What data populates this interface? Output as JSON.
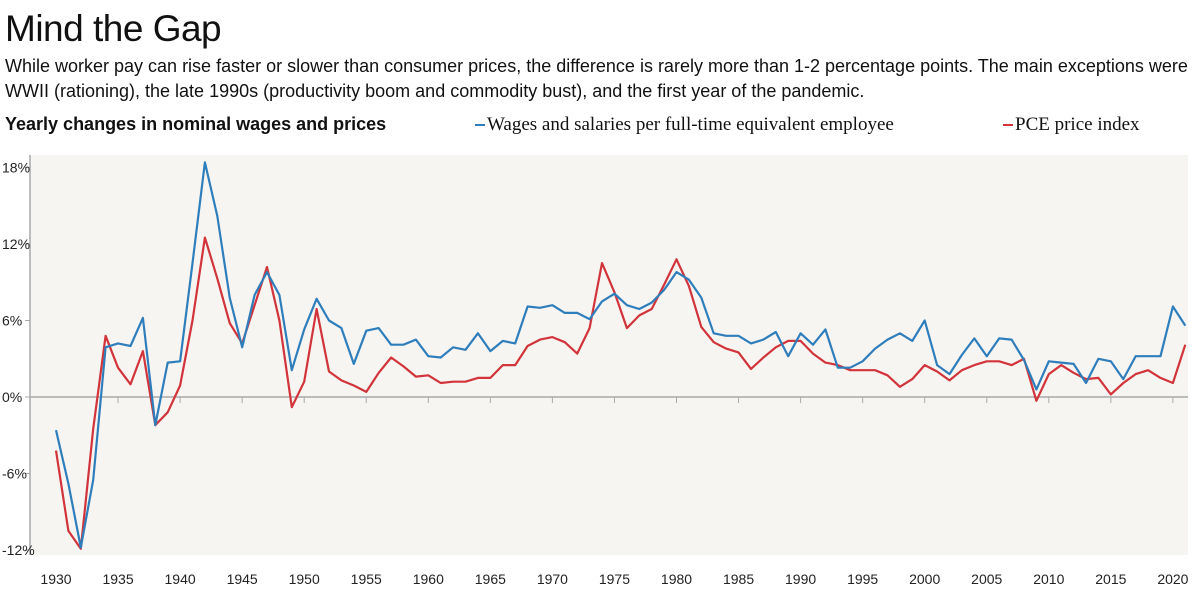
{
  "header": {
    "title": "Mind the Gap",
    "subtitle": "While worker pay can rise faster or slower than consumer prices, the difference is rarely more than 1-2 percentage points. The main exceptions were WWII (rationing), the late 1990s (productivity boom and commodity bust), and the first year of the pandemic."
  },
  "chart_data": {
    "type": "line",
    "title": "Yearly changes in nominal wages and prices",
    "xlabel": "",
    "ylabel": "",
    "xlim": [
      1930,
      2021
    ],
    "ylim": [
      -12,
      19
    ],
    "yticks": [
      -12,
      -6,
      0,
      6,
      12,
      18
    ],
    "ytick_labels": [
      "-12%",
      "-6%",
      "0%",
      "6%",
      "12%",
      "18%"
    ],
    "xticks": [
      1930,
      1935,
      1940,
      1945,
      1950,
      1955,
      1960,
      1965,
      1970,
      1975,
      1980,
      1985,
      1990,
      1995,
      2000,
      2005,
      2010,
      2015,
      2020
    ],
    "xtick_labels": [
      "1930",
      "1935",
      "1940",
      "1945",
      "1950",
      "1955",
      "1960",
      "1965",
      "1970",
      "1975",
      "1980",
      "1985",
      "1990",
      "1995",
      "2000",
      "2005",
      "2010",
      "2015",
      "2020"
    ],
    "grid": false,
    "legend_position": "top-right",
    "x_start": 1930,
    "series": [
      {
        "name": "Wages and salaries per full-time equivalent employee",
        "color": "#2f7ebc",
        "values": [
          -2.6,
          -6.8,
          -11.8,
          -6.5,
          3.9,
          4.2,
          4.0,
          6.2,
          -2.2,
          2.7,
          2.8,
          10.5,
          18.4,
          14.2,
          7.8,
          3.9,
          8.0,
          9.8,
          8.0,
          2.1,
          5.3,
          7.7,
          6.0,
          5.4,
          2.6,
          5.2,
          5.4,
          4.1,
          4.1,
          4.5,
          3.2,
          3.1,
          3.9,
          3.7,
          5.0,
          3.6,
          4.4,
          4.2,
          7.1,
          7.0,
          7.2,
          6.6,
          6.6,
          6.1,
          7.5,
          8.1,
          7.2,
          6.9,
          7.4,
          8.4,
          9.8,
          9.2,
          7.8,
          5.0,
          4.8,
          4.8,
          4.2,
          4.5,
          5.1,
          3.2,
          5.0,
          4.1,
          5.3,
          2.3,
          2.3,
          2.8,
          3.8,
          4.5,
          5.0,
          4.4,
          6.0,
          2.5,
          1.8,
          3.3,
          4.6,
          3.2,
          4.6,
          4.5,
          2.9,
          0.6,
          2.8,
          2.7,
          2.6,
          1.1,
          3.0,
          2.8,
          1.4,
          3.2,
          3.2,
          3.2,
          7.1,
          5.6
        ]
      },
      {
        "name": "PCE price index",
        "color": "#d1343a",
        "values": [
          -4.2,
          -10.5,
          -11.9,
          -2.5,
          4.8,
          2.3,
          1.0,
          3.6,
          -2.2,
          -1.2,
          0.9,
          6.0,
          12.5,
          9.3,
          5.8,
          4.2,
          7.2,
          10.2,
          6.0,
          -0.8,
          1.2,
          6.9,
          2.0,
          1.3,
          0.9,
          0.4,
          1.9,
          3.1,
          2.4,
          1.6,
          1.7,
          1.1,
          1.2,
          1.2,
          1.5,
          1.5,
          2.5,
          2.5,
          4.0,
          4.5,
          4.7,
          4.3,
          3.4,
          5.4,
          10.5,
          8.2,
          5.4,
          6.4,
          6.9,
          8.8,
          10.8,
          8.7,
          5.5,
          4.3,
          3.8,
          3.5,
          2.2,
          3.1,
          3.9,
          4.4,
          4.4,
          3.4,
          2.7,
          2.5,
          2.1,
          2.1,
          2.1,
          1.7,
          0.8,
          1.4,
          2.5,
          2.0,
          1.3,
          2.1,
          2.5,
          2.8,
          2.8,
          2.5,
          3.0,
          -0.3,
          1.8,
          2.5,
          1.9,
          1.4,
          1.5,
          0.2,
          1.1,
          1.8,
          2.1,
          1.5,
          1.1,
          4.1
        ]
      }
    ]
  }
}
